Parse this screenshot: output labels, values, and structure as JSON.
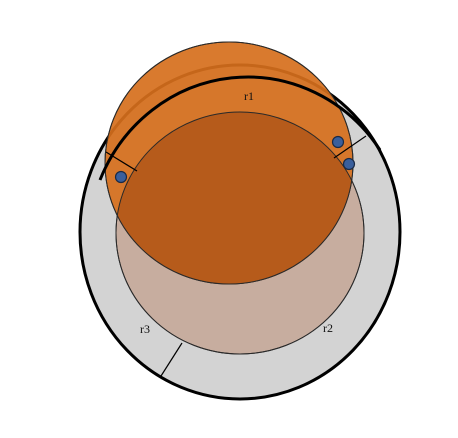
{
  "labels": {
    "r1": "r1",
    "r2": "r2",
    "r3": "r3"
  },
  "colors": {
    "background": "#ffffff",
    "outer_ring_fill": "#d3d3d3",
    "outer_ring_stroke": "#000000",
    "r2_fill": "#c7ad9f",
    "r1_fill": "#d66f1c",
    "overlap_fill": "#b45a1a",
    "marker_fill": "#3a5f9c",
    "marker_stroke": "#1a2a45"
  },
  "markers": {
    "count": 3
  }
}
